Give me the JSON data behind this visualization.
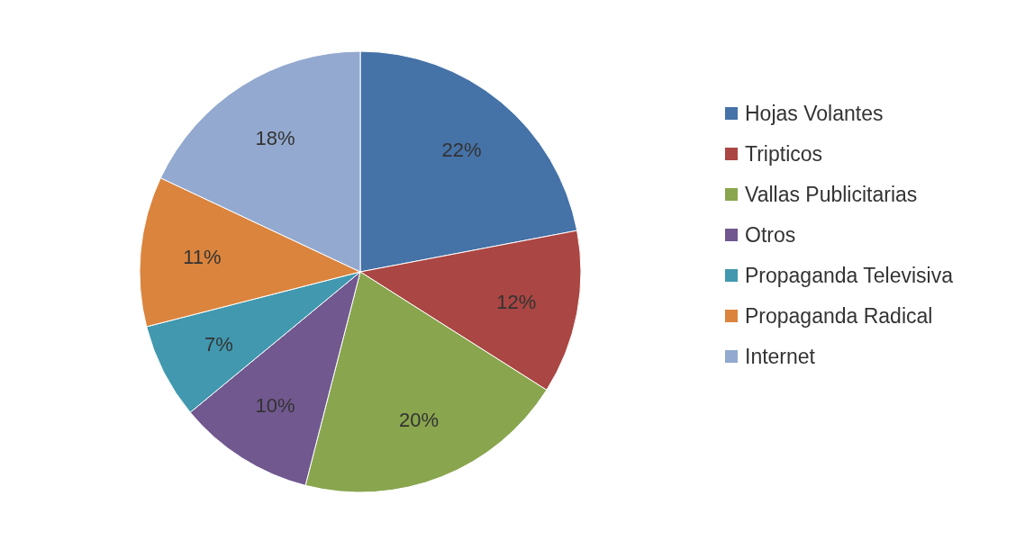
{
  "chart_data": {
    "type": "pie",
    "categories": [
      "Hojas Volantes",
      "Tripticos",
      "Vallas Publicitarias",
      "Otros",
      "Propaganda Televisiva",
      "Propaganda Radical",
      "Internet"
    ],
    "values": [
      22,
      12,
      20,
      10,
      7,
      11,
      18
    ],
    "colors": [
      "#4572a7",
      "#aa4643",
      "#89a54e",
      "#71588f",
      "#4198af",
      "#db843d",
      "#93a9cf"
    ],
    "value_labels": [
      "22%",
      "12%",
      "20%",
      "10%",
      "7%",
      "11%",
      "18%"
    ],
    "legend": "right"
  }
}
